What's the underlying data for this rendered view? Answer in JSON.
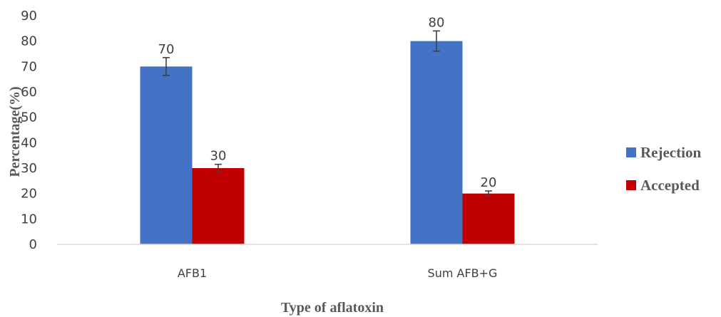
{
  "chart_data": {
    "type": "bar",
    "title": "",
    "xlabel": "Type of aflatoxin",
    "ylabel": "Percentage(%)",
    "categories": [
      "AFB1",
      "Sum AFB+G"
    ],
    "series": [
      {
        "name": "Rejection",
        "color": "#4472C4",
        "values": [
          70,
          80
        ],
        "errors": [
          3.5,
          4
        ]
      },
      {
        "name": "Accepted",
        "color": "#C00000",
        "values": [
          30,
          20
        ],
        "errors": [
          1.5,
          1
        ]
      }
    ],
    "ylim": [
      0,
      90
    ],
    "yticks": [
      0,
      10,
      20,
      30,
      40,
      50,
      60,
      70,
      80,
      90
    ],
    "grid": false,
    "legend": "right",
    "data_labels": true
  }
}
